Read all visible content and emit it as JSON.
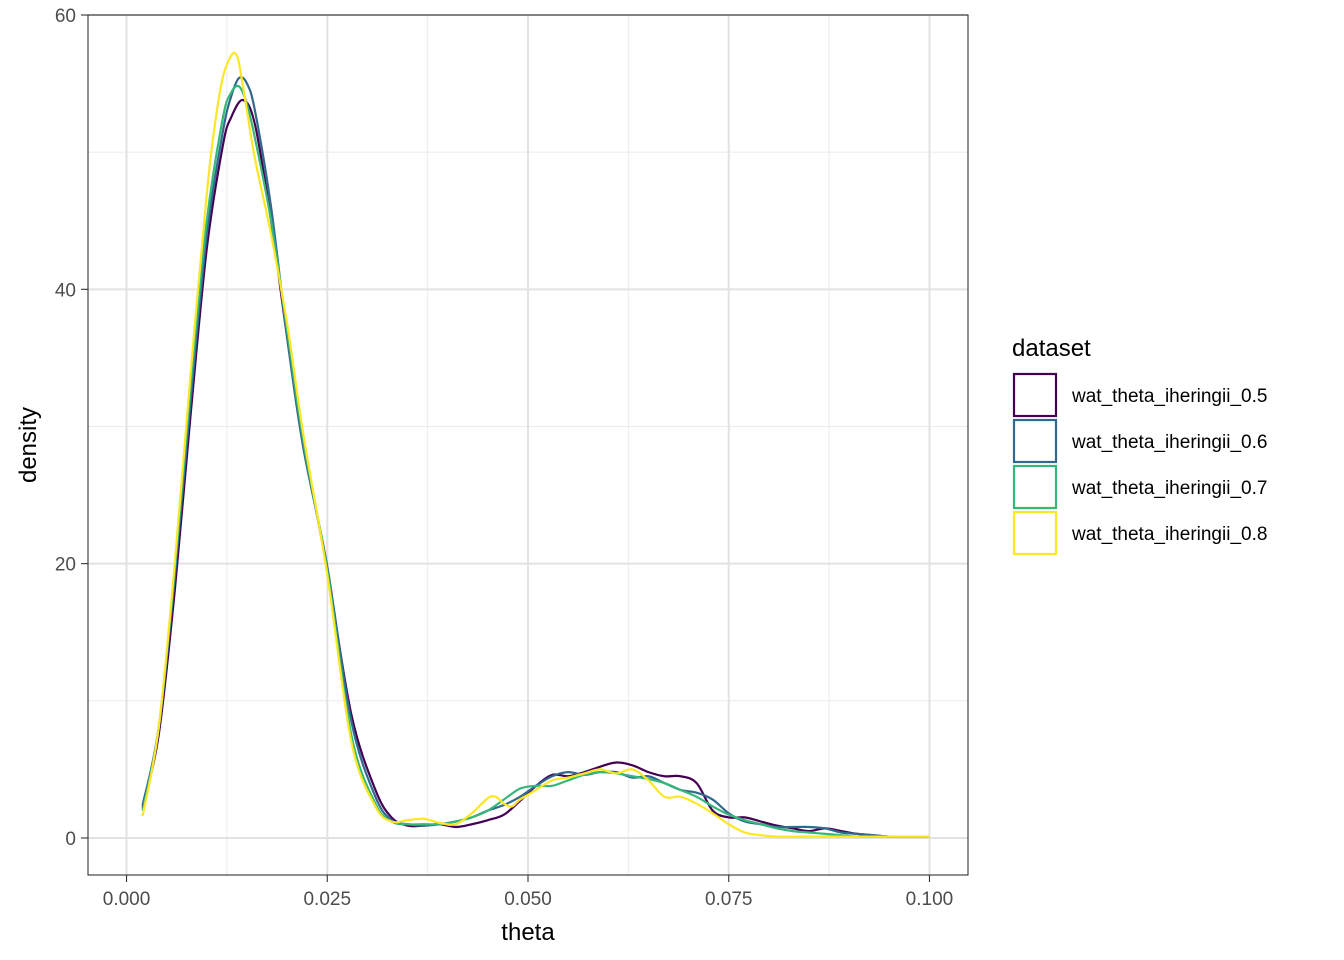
{
  "chart_data": {
    "type": "line",
    "title": "",
    "xlabel": "theta",
    "ylabel": "density",
    "xlim": [
      -0.0048,
      0.1048
    ],
    "ylim": [
      -2.7,
      60
    ],
    "x_ticks": [
      0.0,
      0.025,
      0.05,
      0.075,
      0.1
    ],
    "x_tick_labels": [
      "0.000",
      "0.025",
      "0.050",
      "0.075",
      "0.100"
    ],
    "y_ticks": [
      0,
      20,
      40,
      60
    ],
    "y_tick_labels": [
      "0",
      "20",
      "40",
      "60"
    ],
    "y_minor_ticks": [
      10,
      30,
      50
    ],
    "x_minor_ticks": [
      0.0125,
      0.0375,
      0.0625,
      0.0875
    ],
    "grid": true,
    "legend": {
      "title": "dataset",
      "position": "right"
    },
    "series": [
      {
        "name": "wat_theta_iheringii_0.5",
        "color": "#440154",
        "x": [
          0.002,
          0.004,
          0.006,
          0.008,
          0.01,
          0.012,
          0.013,
          0.0145,
          0.016,
          0.018,
          0.02,
          0.022,
          0.025,
          0.028,
          0.031,
          0.033,
          0.035,
          0.037,
          0.039,
          0.041,
          0.043,
          0.045,
          0.047,
          0.049,
          0.051,
          0.053,
          0.055,
          0.057,
          0.059,
          0.061,
          0.063,
          0.065,
          0.067,
          0.069,
          0.071,
          0.073,
          0.075,
          0.077,
          0.079,
          0.081,
          0.083,
          0.085,
          0.087,
          0.089,
          0.091,
          0.093,
          0.095,
          0.097,
          0.1
        ],
        "y": [
          2.2,
          7.5,
          18,
          31,
          43,
          50.5,
          52.5,
          53.8,
          52,
          45,
          36.5,
          29,
          19.5,
          9,
          3.5,
          1.5,
          0.9,
          0.9,
          1.0,
          0.8,
          1.0,
          1.3,
          1.7,
          2.7,
          3.8,
          4.6,
          4.5,
          4.8,
          5.2,
          5.5,
          5.3,
          4.8,
          4.5,
          4.5,
          4.0,
          2.0,
          1.5,
          1.5,
          1.2,
          0.9,
          0.7,
          0.5,
          0.7,
          0.5,
          0.3,
          0.2,
          0.1,
          0.1,
          0.1
        ]
      },
      {
        "name": "wat_theta_iheringii_0.6",
        "color": "#31688E",
        "x": [
          0.002,
          0.004,
          0.006,
          0.008,
          0.01,
          0.012,
          0.013,
          0.014,
          0.015,
          0.016,
          0.018,
          0.02,
          0.022,
          0.025,
          0.028,
          0.031,
          0.033,
          0.035,
          0.037,
          0.039,
          0.041,
          0.043,
          0.045,
          0.047,
          0.049,
          0.051,
          0.053,
          0.055,
          0.057,
          0.059,
          0.061,
          0.063,
          0.065,
          0.067,
          0.069,
          0.071,
          0.073,
          0.075,
          0.077,
          0.079,
          0.081,
          0.083,
          0.085,
          0.087,
          0.089,
          0.091,
          0.093,
          0.095,
          0.097,
          0.1
        ],
        "y": [
          2.4,
          8,
          19,
          32,
          44,
          51.5,
          54,
          55.4,
          55,
          53,
          46,
          36.5,
          28.5,
          19.8,
          8.5,
          3.0,
          1.3,
          1.0,
          0.9,
          1.0,
          1.2,
          1.5,
          2.0,
          2.4,
          3.0,
          3.8,
          4.5,
          4.8,
          4.6,
          4.8,
          4.8,
          4.4,
          4.5,
          4.0,
          3.5,
          3.3,
          2.8,
          1.8,
          1.2,
          1.0,
          0.8,
          0.8,
          0.8,
          0.7,
          0.4,
          0.3,
          0.2,
          0.1,
          0.1,
          0.1
        ]
      },
      {
        "name": "wat_theta_iheringii_0.7",
        "color": "#35B779",
        "x": [
          0.002,
          0.004,
          0.006,
          0.008,
          0.01,
          0.012,
          0.013,
          0.014,
          0.015,
          0.016,
          0.018,
          0.02,
          0.022,
          0.025,
          0.028,
          0.031,
          0.033,
          0.035,
          0.037,
          0.039,
          0.041,
          0.043,
          0.045,
          0.047,
          0.049,
          0.051,
          0.053,
          0.055,
          0.057,
          0.059,
          0.061,
          0.063,
          0.065,
          0.067,
          0.069,
          0.071,
          0.073,
          0.075,
          0.077,
          0.079,
          0.081,
          0.083,
          0.085,
          0.087,
          0.089,
          0.091,
          0.093,
          0.095,
          0.097,
          0.1
        ],
        "y": [
          2.0,
          8,
          19.5,
          33,
          45,
          52.5,
          54.3,
          54.8,
          53.5,
          51,
          45,
          37,
          29,
          19.5,
          7.5,
          2.5,
          1.2,
          1.0,
          1.0,
          1.0,
          1.2,
          1.5,
          2.0,
          2.8,
          3.6,
          3.8,
          3.8,
          4.2,
          4.6,
          4.8,
          4.7,
          4.5,
          4.3,
          4.0,
          3.5,
          3.0,
          2.3,
          1.7,
          1.3,
          1.0,
          0.7,
          0.5,
          0.4,
          0.3,
          0.2,
          0.1,
          0.1,
          0.1,
          0.1,
          0.1
        ]
      },
      {
        "name": "wat_theta_iheringii_0.8",
        "color": "#FDE725",
        "x": [
          0.002,
          0.004,
          0.006,
          0.008,
          0.01,
          0.011,
          0.012,
          0.013,
          0.0135,
          0.014,
          0.015,
          0.016,
          0.018,
          0.02,
          0.022,
          0.025,
          0.028,
          0.031,
          0.033,
          0.035,
          0.037,
          0.039,
          0.041,
          0.043,
          0.045,
          0.046,
          0.047,
          0.048,
          0.049,
          0.051,
          0.053,
          0.055,
          0.057,
          0.059,
          0.061,
          0.063,
          0.065,
          0.067,
          0.069,
          0.071,
          0.073,
          0.075,
          0.077,
          0.079,
          0.081,
          0.083,
          0.085,
          0.087,
          0.089,
          0.091,
          0.093,
          0.095,
          0.097,
          0.1
        ],
        "y": [
          1.6,
          8,
          20,
          34,
          47,
          52,
          55.5,
          57,
          57.2,
          56.5,
          53,
          49.5,
          44,
          37.5,
          29.5,
          19.2,
          7.0,
          2.3,
          1.2,
          1.3,
          1.4,
          1.1,
          1.0,
          1.8,
          2.9,
          3.0,
          2.5,
          2.3,
          2.8,
          3.5,
          4.2,
          4.4,
          4.7,
          5.0,
          4.7,
          5.0,
          4.2,
          3.0,
          3.0,
          2.5,
          1.8,
          1.0,
          0.4,
          0.2,
          0.1,
          0.1,
          0.1,
          0.1,
          0.1,
          0.1,
          0.1,
          0.1,
          0.1,
          0.1
        ]
      }
    ]
  }
}
